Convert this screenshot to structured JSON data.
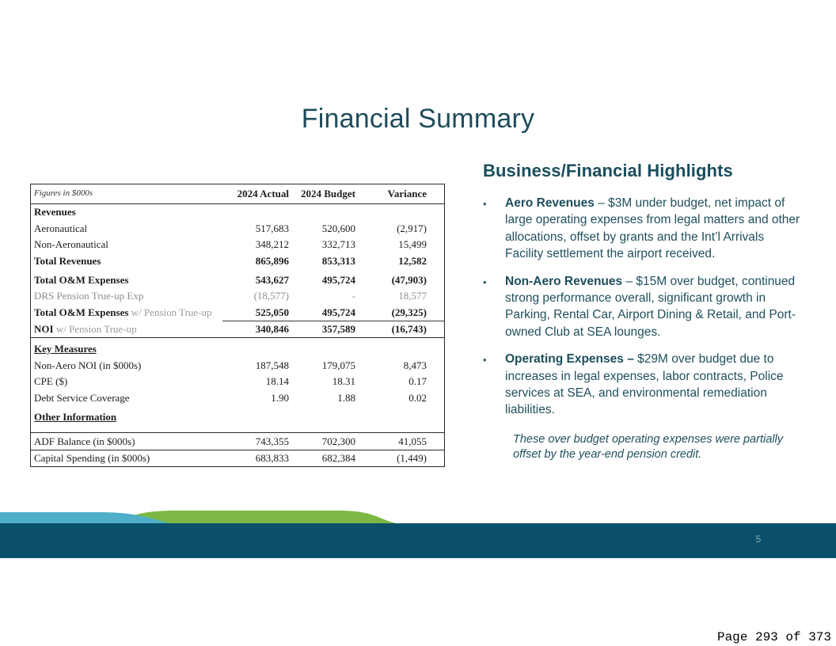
{
  "slide": {
    "title": "Financial Summary",
    "slide_number": "5"
  },
  "table": {
    "caption": "Figures in $000s",
    "columns": {
      "actual": "2024 Actual",
      "budget": "2024 Budget",
      "variance": "Variance"
    },
    "rows": [
      {
        "label": "Revenues",
        "bold": true
      },
      {
        "label": "Aeronautical",
        "actual": "517,683",
        "budget": "520,600",
        "variance": "(2,917)"
      },
      {
        "label": "Non-Aeronautical",
        "actual": "348,212",
        "budget": "332,713",
        "variance": "15,499"
      },
      {
        "label": "Total Revenues",
        "bold": true,
        "actual": "865,896",
        "budget": "853,313",
        "variance": "12,582"
      },
      {
        "label": "Total O&M Expenses",
        "bold": true,
        "spaceTop": true,
        "actual": "543,627",
        "budget": "495,724",
        "variance": "(47,903)"
      },
      {
        "label": "DRS Pension True-up Exp",
        "gray": true,
        "actual": "(18,577)",
        "budget": "-",
        "variance": "18,577"
      },
      {
        "label": "Total O&M Expenses",
        "suffix": " w/ Pension True-up",
        "bold": true,
        "sum": true,
        "actual": "525,050",
        "budget": "495,724",
        "variance": "(29,325)"
      },
      {
        "label": "NOI",
        "suffix": " w/ Pension True-up",
        "bold": true,
        "actual": "340,846",
        "budget": "357,589",
        "variance": "(16,743)"
      },
      {
        "label": "Key Measures",
        "bold": true,
        "underline": true,
        "ruleTop": true,
        "spaceTop": true
      },
      {
        "label": "Non-Aero NOI (in $000s)",
        "actual": "187,548",
        "budget": "179,075",
        "variance": "8,473"
      },
      {
        "label": "CPE ($)",
        "actual": "18.14",
        "budget": "18.31",
        "variance": "0.17"
      },
      {
        "label": "Debt Service Coverage",
        "actual": "1.90",
        "budget": "1.88",
        "variance": "0.02"
      },
      {
        "label": "Other Information",
        "bold": true,
        "underline": true,
        "spaceTop": true,
        "padBottom": true
      },
      {
        "label": "ADF Balance (in $000s)",
        "ruleTop": true,
        "actual": "743,355",
        "budget": "702,300",
        "variance": "41,055"
      },
      {
        "label": "Capital Spending (in $000s)",
        "ruleTop": true,
        "actual": "683,833",
        "budget": "682,384",
        "variance": "(1,449)"
      }
    ]
  },
  "highlights": {
    "title": "Business/Financial Highlights",
    "bullet_glyph": "•",
    "bullets": [
      {
        "lead": "Aero Revenues",
        "rest": " – $3M under budget, net impact of large operating expenses from legal matters and other allocations, offset by grants and the Int’l Arrivals Facility settlement the airport received."
      },
      {
        "lead": "Non-Aero Revenues",
        "rest": " – $15M over budget, continued strong performance overall, significant growth in Parking, Rental Car, Airport Dining & Retail, and Port-owned Club at SEA lounges."
      },
      {
        "lead": "Operating Expenses – ",
        "rest": "$29M over budget due to increases in legal expenses, labor contracts, Police services at SEA, and environmental remediation liabilities."
      }
    ],
    "note": "These over budget operating expenses were partially offset by the year-end pension credit."
  },
  "pdf": {
    "page_indicator": "Page 293 of 373"
  },
  "colors": {
    "title_teal": "#1e4c5a",
    "body_teal": "#20505e",
    "footer_bar_teal": "#0b506a",
    "wave_blue": "#4fafc9",
    "wave_green": "#7cb843",
    "table_gray_text": "#8e8e8e",
    "slide_number_gray": "#94aab6"
  }
}
